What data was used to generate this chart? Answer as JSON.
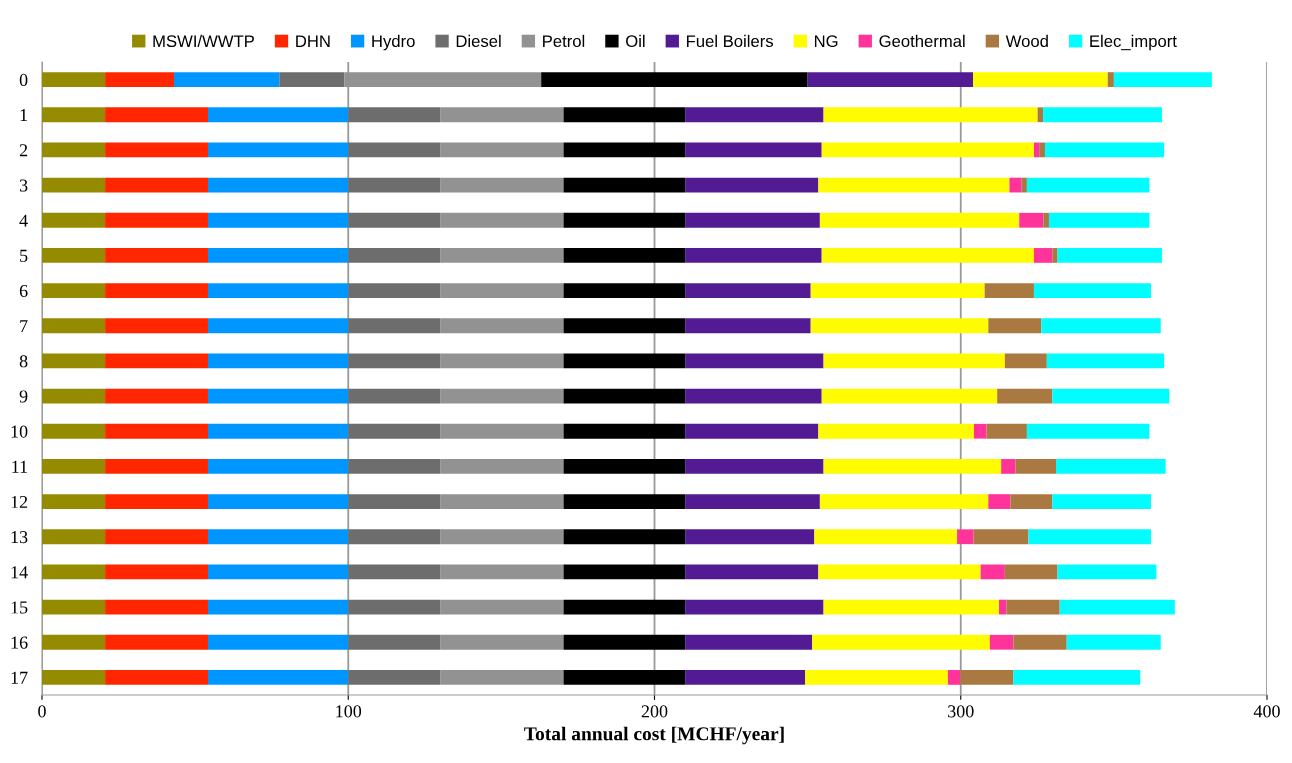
{
  "chart_data": {
    "type": "bar",
    "orientation": "horizontal",
    "stacked": true,
    "xlabel": "Total annual cost [MCHF/year]",
    "categories": [
      "0",
      "1",
      "2",
      "3",
      "4",
      "5",
      "6",
      "7",
      "8",
      "9",
      "10",
      "11",
      "12",
      "13",
      "14",
      "15",
      "16",
      "17"
    ],
    "xlim": [
      0,
      400
    ],
    "xticks": [
      0,
      100,
      200,
      300,
      400
    ],
    "grid": "x",
    "legend": "top",
    "series": [
      {
        "name": "MSWI/WWTP",
        "color": "#948b00",
        "values": [
          20.6,
          20.6,
          20.6,
          20.6,
          20.6,
          20.6,
          20.6,
          20.6,
          20.6,
          20.6,
          20.6,
          20.6,
          20.6,
          20.6,
          20.6,
          20.6,
          20.6,
          20.6
        ]
      },
      {
        "name": "DHN",
        "color": "#ff2600",
        "values": [
          22.5,
          33.6,
          33.6,
          33.6,
          33.6,
          33.6,
          33.6,
          33.6,
          33.6,
          33.6,
          33.6,
          33.6,
          33.6,
          33.6,
          33.6,
          33.6,
          33.6,
          33.6
        ]
      },
      {
        "name": "Hydro",
        "color": "#0096ff",
        "values": [
          34.4,
          45.8,
          45.8,
          45.8,
          45.8,
          45.8,
          45.8,
          45.8,
          45.8,
          45.8,
          45.8,
          45.8,
          45.8,
          45.8,
          45.8,
          45.8,
          45.8,
          45.8
        ]
      },
      {
        "name": "Diesel",
        "color": "#6d6d6d",
        "values": [
          21.2,
          30,
          30,
          30,
          30,
          30,
          30,
          30,
          30,
          30,
          30,
          30,
          30,
          30,
          30,
          30,
          30,
          30
        ]
      },
      {
        "name": "Petrol",
        "color": "#929292",
        "values": [
          64.3,
          40.3,
          40.3,
          40.3,
          40.3,
          40.3,
          40.3,
          40.3,
          40.3,
          40.3,
          40.3,
          40.3,
          40.3,
          40.3,
          40.3,
          40.3,
          40.3,
          40.3
        ]
      },
      {
        "name": "Oil",
        "color": "#000000",
        "values": [
          87,
          39.7,
          39.7,
          39.7,
          39.7,
          39.7,
          39.7,
          39.7,
          39.7,
          39.7,
          39.7,
          39.7,
          39.7,
          39.7,
          39.7,
          39.7,
          39.7,
          39.7
        ]
      },
      {
        "name": "Fuel Boilers",
        "color": "#531b93",
        "values": [
          54,
          45.2,
          44.6,
          43.5,
          44,
          44.6,
          41,
          41,
          45.2,
          44.6,
          43.5,
          45.2,
          44,
          42.2,
          43.5,
          45.2,
          41.5,
          39.2
        ]
      },
      {
        "name": "NG",
        "color": "#fffb00",
        "values": [
          44,
          69.9,
          69.3,
          62.4,
          65.1,
          69.3,
          56.8,
          58,
          59.2,
          57.3,
          50.8,
          58,
          55,
          46.6,
          53,
          57.3,
          58,
          46.6
        ]
      },
      {
        "name": "Geothermal",
        "color": "#ff3399",
        "values": [
          0,
          0,
          1.7,
          4,
          7.9,
          6,
          0,
          0,
          0,
          0,
          4.1,
          4.7,
          7.2,
          5.4,
          7.9,
          2.4,
          7.7,
          4.1
        ]
      },
      {
        "name": "Wood",
        "color": "#aa7942",
        "values": [
          2,
          1.8,
          1.9,
          1.7,
          1.8,
          1.7,
          16.1,
          17.3,
          13.7,
          18,
          13.2,
          13.2,
          13.7,
          17.9,
          17.2,
          17.4,
          17.4,
          17.3
        ]
      },
      {
        "name": "Elec_import",
        "color": "#00fdff",
        "values": [
          32,
          38.8,
          38.9,
          40,
          32.8,
          34.1,
          38.2,
          39,
          38.3,
          38.2,
          40,
          35.8,
          32.2,
          40,
          32.3,
          37.6,
          30.7,
          41.4
        ]
      }
    ]
  }
}
